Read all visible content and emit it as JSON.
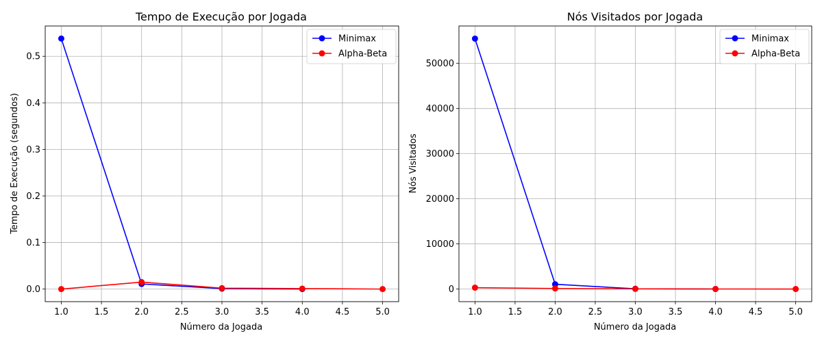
{
  "chart_data": [
    {
      "type": "line",
      "title": "Tempo de Execução por Jogada",
      "xlabel": "Número da Jogada",
      "ylabel": "Tempo de Execução (segundos)",
      "xlim": [
        0.8,
        5.2
      ],
      "ylim": [
        -0.027,
        0.565
      ],
      "xticks": [
        "1.0",
        "1.5",
        "2.0",
        "2.5",
        "3.0",
        "3.5",
        "4.0",
        "4.5",
        "5.0"
      ],
      "yticks": [
        "0.0",
        "0.1",
        "0.2",
        "0.3",
        "0.4",
        "0.5"
      ],
      "grid": true,
      "legend_position": "top-right",
      "series": [
        {
          "name": "Minimax",
          "color": "#0000ff",
          "x": [
            1,
            2,
            3,
            4
          ],
          "y": [
            0.538,
            0.011,
            0.001,
            0.0
          ]
        },
        {
          "name": "Alpha-Beta",
          "color": "#ff0000",
          "x": [
            1,
            2,
            3,
            4,
            5
          ],
          "y": [
            0.0,
            0.015,
            0.002,
            0.001,
            0.0
          ]
        }
      ]
    },
    {
      "type": "line",
      "title": "Nós Visitados por Jogada",
      "xlabel": "Número da Jogada",
      "ylabel": "Nós Visitados",
      "xlim": [
        0.8,
        5.2
      ],
      "ylim": [
        -2800,
        58300
      ],
      "xticks": [
        "1.0",
        "1.5",
        "2.0",
        "2.5",
        "3.0",
        "3.5",
        "4.0",
        "4.5",
        "5.0"
      ],
      "yticks": [
        "0",
        "10000",
        "20000",
        "30000",
        "40000",
        "50000"
      ],
      "grid": true,
      "legend_position": "top-right",
      "series": [
        {
          "name": "Minimax",
          "color": "#0000ff",
          "x": [
            1,
            2,
            3,
            4
          ],
          "y": [
            55500,
            1050,
            60,
            5
          ]
        },
        {
          "name": "Alpha-Beta",
          "color": "#ff0000",
          "x": [
            1,
            2,
            3,
            4,
            5
          ],
          "y": [
            300,
            120,
            30,
            5,
            1
          ]
        }
      ]
    }
  ]
}
